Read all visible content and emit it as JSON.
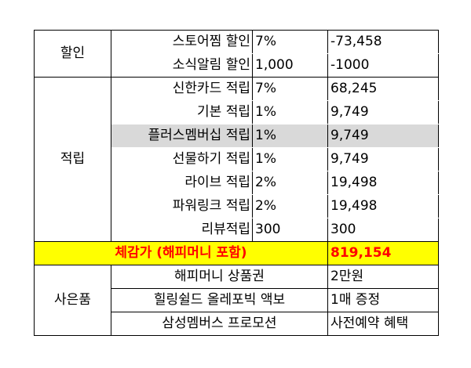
{
  "discount": {
    "category": "할인",
    "rows": [
      {
        "name": "스토어찜 할인",
        "rate": "7%",
        "amount": "-73,458"
      },
      {
        "name": "소식알림 할인",
        "rate": "1,000",
        "amount": "-1000"
      }
    ]
  },
  "points": {
    "category": "적립",
    "rows": [
      {
        "name": "신한카드 적립",
        "rate": "7%",
        "amount": "68,245"
      },
      {
        "name": "기본 적립",
        "rate": "1%",
        "amount": "9,749"
      },
      {
        "name": "플러스멤버십 적립",
        "rate": "1%",
        "amount": "9,749"
      },
      {
        "name": "선물하기 적립",
        "rate": "1%",
        "amount": "9,749"
      },
      {
        "name": "라이브 적립",
        "rate": "2%",
        "amount": "19,498"
      },
      {
        "name": "파워링크 적립",
        "rate": "2%",
        "amount": "19,498"
      },
      {
        "name": "리뷰적립",
        "rate": "300",
        "amount": "300"
      }
    ]
  },
  "total": {
    "label": "체감가 (해피머니 포함)",
    "amount": "819,154"
  },
  "gifts": {
    "category": "사은품",
    "rows": [
      {
        "name": "해피머니 상품권",
        "value": "2만원"
      },
      {
        "name": "힐링쉴드 올레포빅 액보",
        "value": "1매 증정"
      },
      {
        "name": "삼성멤버스 프로모션",
        "value": "사전예약 혜택"
      }
    ]
  },
  "colors": {
    "total_bg": "#ffff00",
    "total_text": "#ff0000",
    "highlight_bg": "#d9d9d9"
  }
}
